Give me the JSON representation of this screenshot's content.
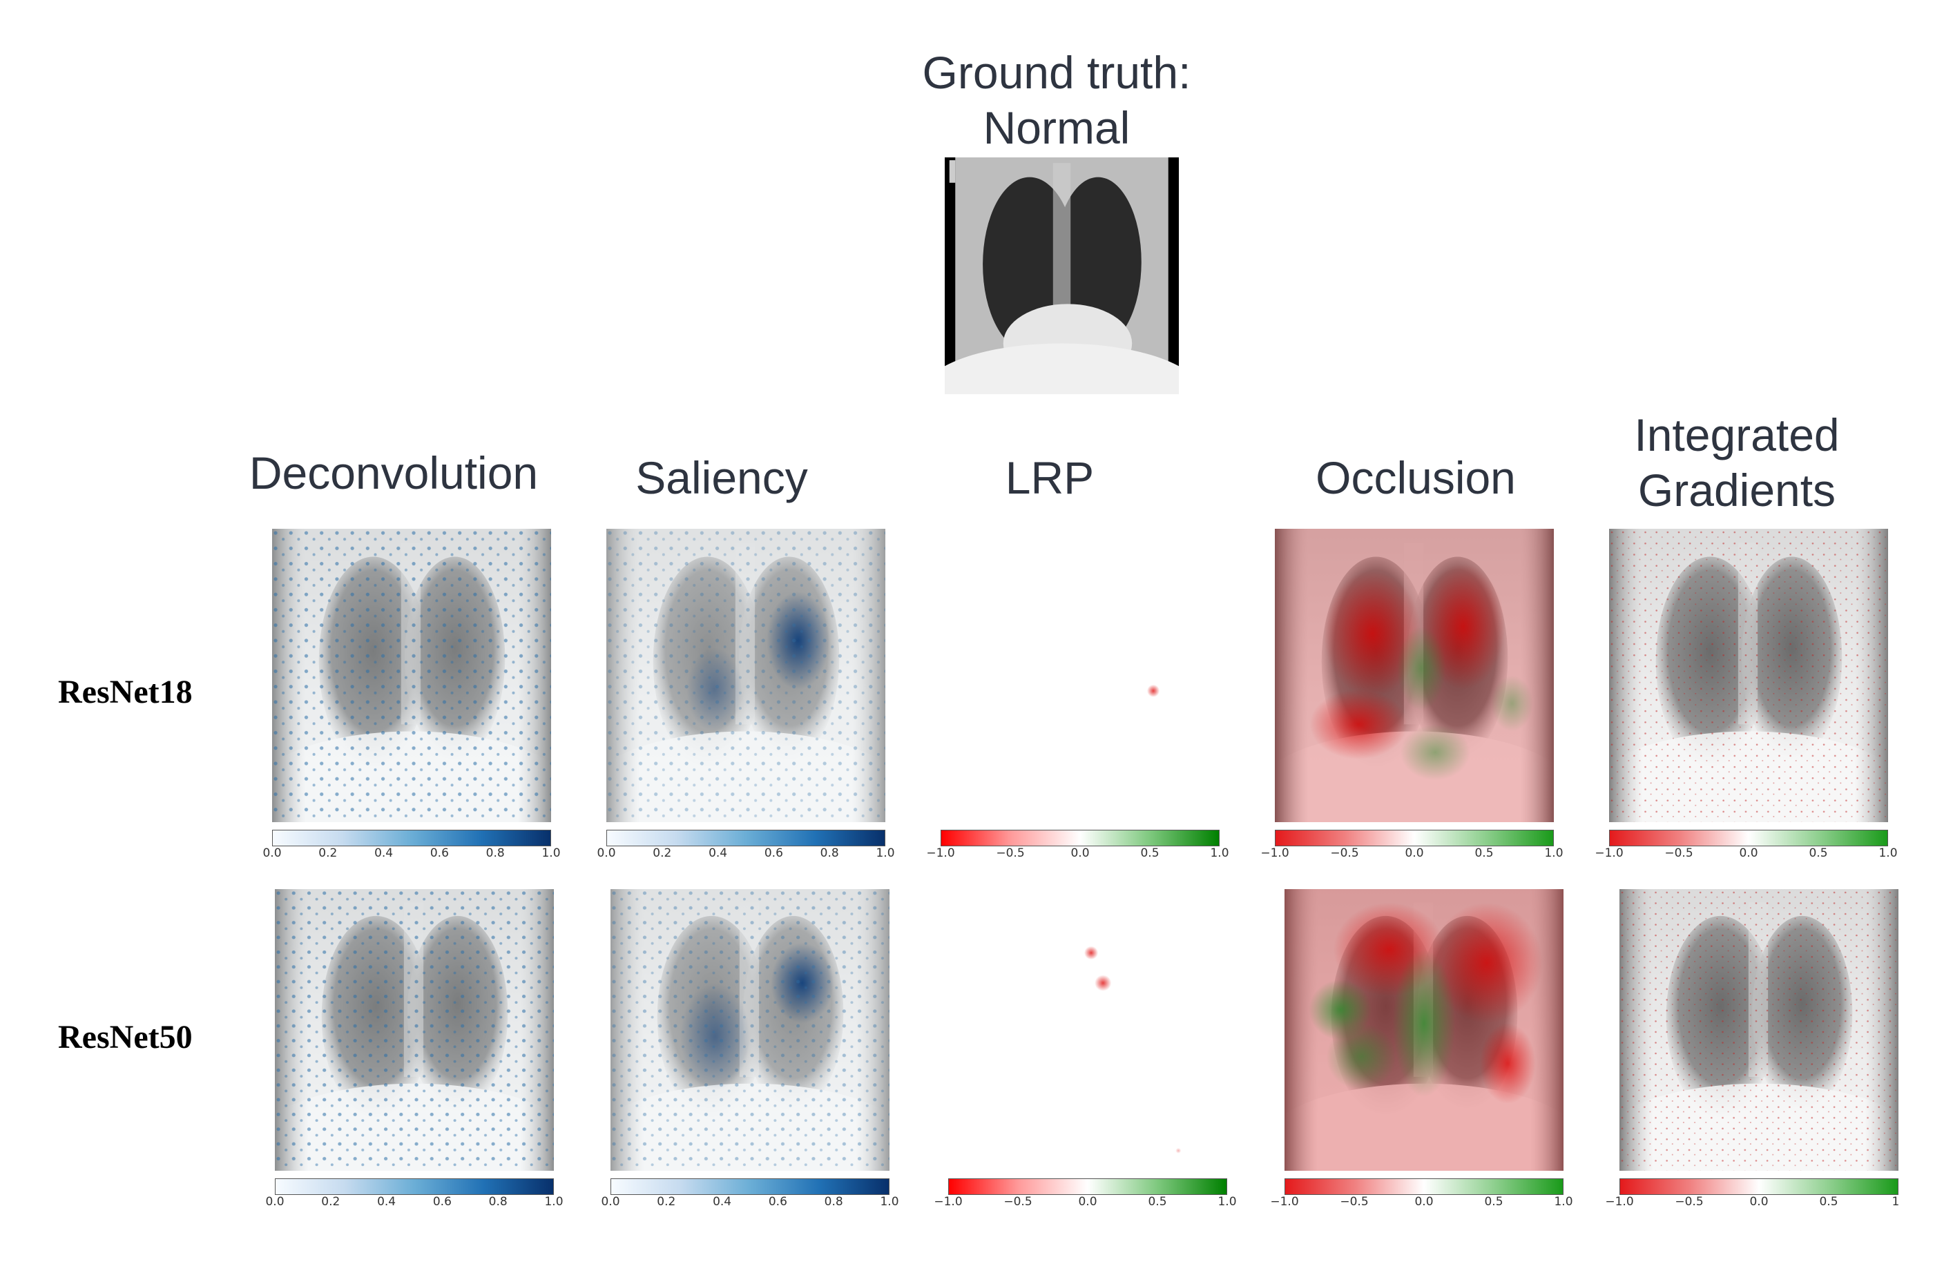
{
  "header": {
    "title_line1": "Ground truth:",
    "title_line2": "Normal"
  },
  "columns": [
    {
      "title": "Deconvolution",
      "cmap": "blue",
      "ticks": [
        "0.0",
        "0.2",
        "0.4",
        "0.6",
        "0.8",
        "1.0"
      ]
    },
    {
      "title": "Saliency",
      "cmap": "blue",
      "ticks": [
        "0.0",
        "0.2",
        "0.4",
        "0.6",
        "0.8",
        "1.0"
      ]
    },
    {
      "title": "LRP",
      "cmap": "red-white-green",
      "ticks": [
        "−1.0",
        "−0.5",
        "0.0",
        "0.5",
        "1.0"
      ]
    },
    {
      "title": "Occlusion",
      "cmap": "red-white-green",
      "ticks": [
        "−1.0",
        "−0.5",
        "0.0",
        "0.5",
        "1.0"
      ]
    },
    {
      "title_line1": "Integrated",
      "title_line2": "Gradients",
      "cmap": "red-white-green",
      "ticks": [
        "−1.0",
        "−0.5",
        "0.0",
        "0.5",
        "1.0"
      ]
    }
  ],
  "rows": [
    {
      "label": "ResNet18"
    },
    {
      "label": "ResNet50",
      "ig_last_tick": "1"
    }
  ]
}
